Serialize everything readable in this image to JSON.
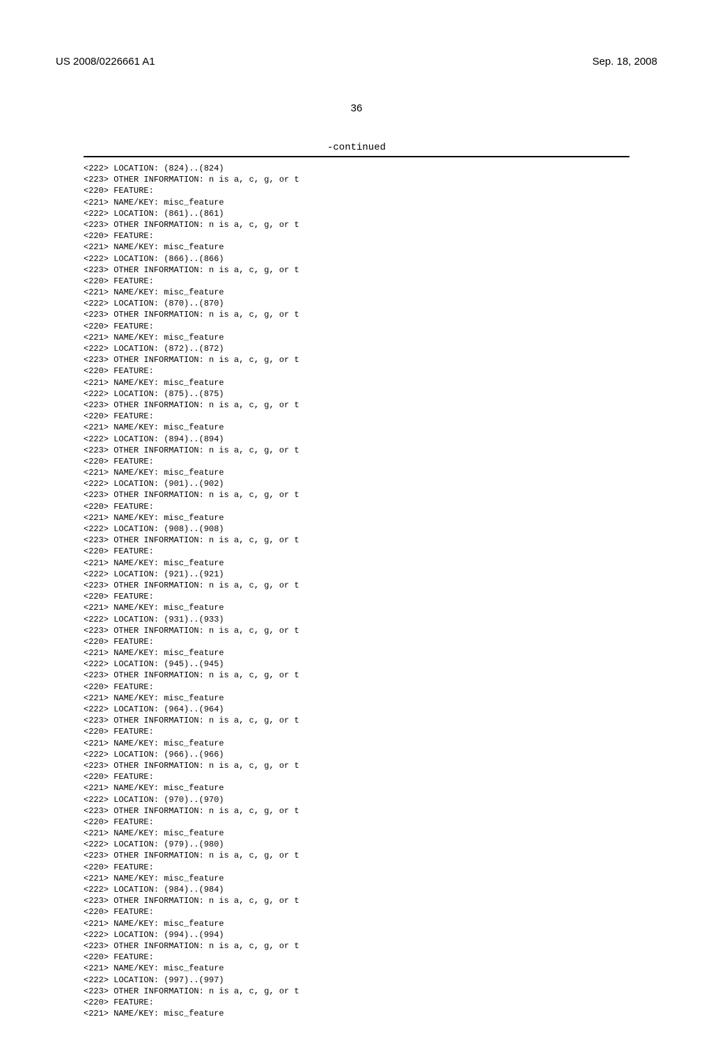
{
  "header": {
    "pub_number": "US 2008/0226661 A1",
    "date": "Sep. 18, 2008"
  },
  "page_number": "36",
  "continued_label": "-continued",
  "features": [
    {
      "tag222": "<222> LOCATION: (824)..(824)",
      "tag223": "<223> OTHER INFORMATION: n is a, c, g, or t",
      "tag220": "<220> FEATURE:",
      "tag221": "<221> NAME/KEY: misc_feature"
    },
    {
      "tag222": "<222> LOCATION: (861)..(861)",
      "tag223": "<223> OTHER INFORMATION: n is a, c, g, or t",
      "tag220": "<220> FEATURE:",
      "tag221": "<221> NAME/KEY: misc_feature"
    },
    {
      "tag222": "<222> LOCATION: (866)..(866)",
      "tag223": "<223> OTHER INFORMATION: n is a, c, g, or t",
      "tag220": "<220> FEATURE:",
      "tag221": "<221> NAME/KEY: misc_feature"
    },
    {
      "tag222": "<222> LOCATION: (870)..(870)",
      "tag223": "<223> OTHER INFORMATION: n is a, c, g, or t",
      "tag220": "<220> FEATURE:",
      "tag221": "<221> NAME/KEY: misc_feature"
    },
    {
      "tag222": "<222> LOCATION: (872)..(872)",
      "tag223": "<223> OTHER INFORMATION: n is a, c, g, or t",
      "tag220": "<220> FEATURE:",
      "tag221": "<221> NAME/KEY: misc_feature"
    },
    {
      "tag222": "<222> LOCATION: (875)..(875)",
      "tag223": "<223> OTHER INFORMATION: n is a, c, g, or t",
      "tag220": "<220> FEATURE:",
      "tag221": "<221> NAME/KEY: misc_feature"
    },
    {
      "tag222": "<222> LOCATION: (894)..(894)",
      "tag223": "<223> OTHER INFORMATION: n is a, c, g, or t",
      "tag220": "<220> FEATURE:",
      "tag221": "<221> NAME/KEY: misc_feature"
    },
    {
      "tag222": "<222> LOCATION: (901)..(902)",
      "tag223": "<223> OTHER INFORMATION: n is a, c, g, or t",
      "tag220": "<220> FEATURE:",
      "tag221": "<221> NAME/KEY: misc_feature"
    },
    {
      "tag222": "<222> LOCATION: (908)..(908)",
      "tag223": "<223> OTHER INFORMATION: n is a, c, g, or t",
      "tag220": "<220> FEATURE:",
      "tag221": "<221> NAME/KEY: misc_feature"
    },
    {
      "tag222": "<222> LOCATION: (921)..(921)",
      "tag223": "<223> OTHER INFORMATION: n is a, c, g, or t",
      "tag220": "<220> FEATURE:",
      "tag221": "<221> NAME/KEY: misc_feature"
    },
    {
      "tag222": "<222> LOCATION: (931)..(933)",
      "tag223": "<223> OTHER INFORMATION: n is a, c, g, or t",
      "tag220": "<220> FEATURE:",
      "tag221": "<221> NAME/KEY: misc_feature"
    },
    {
      "tag222": "<222> LOCATION: (945)..(945)",
      "tag223": "<223> OTHER INFORMATION: n is a, c, g, or t",
      "tag220": "<220> FEATURE:",
      "tag221": "<221> NAME/KEY: misc_feature"
    },
    {
      "tag222": "<222> LOCATION: (964)..(964)",
      "tag223": "<223> OTHER INFORMATION: n is a, c, g, or t",
      "tag220": "<220> FEATURE:",
      "tag221": "<221> NAME/KEY: misc_feature"
    },
    {
      "tag222": "<222> LOCATION: (966)..(966)",
      "tag223": "<223> OTHER INFORMATION: n is a, c, g, or t",
      "tag220": "<220> FEATURE:",
      "tag221": "<221> NAME/KEY: misc_feature"
    },
    {
      "tag222": "<222> LOCATION: (970)..(970)",
      "tag223": "<223> OTHER INFORMATION: n is a, c, g, or t",
      "tag220": "<220> FEATURE:",
      "tag221": "<221> NAME/KEY: misc_feature"
    },
    {
      "tag222": "<222> LOCATION: (979)..(980)",
      "tag223": "<223> OTHER INFORMATION: n is a, c, g, or t",
      "tag220": "<220> FEATURE:",
      "tag221": "<221> NAME/KEY: misc_feature"
    },
    {
      "tag222": "<222> LOCATION: (984)..(984)",
      "tag223": "<223> OTHER INFORMATION: n is a, c, g, or t",
      "tag220": "<220> FEATURE:",
      "tag221": "<221> NAME/KEY: misc_feature"
    },
    {
      "tag222": "<222> LOCATION: (994)..(994)",
      "tag223": "<223> OTHER INFORMATION: n is a, c, g, or t",
      "tag220": "<220> FEATURE:",
      "tag221": "<221> NAME/KEY: misc_feature"
    },
    {
      "tag222": "<222> LOCATION: (997)..(997)",
      "tag223": "<223> OTHER INFORMATION: n is a, c, g, or t",
      "tag220": "<220> FEATURE:",
      "tag221": "<221> NAME/KEY: misc_feature"
    }
  ]
}
